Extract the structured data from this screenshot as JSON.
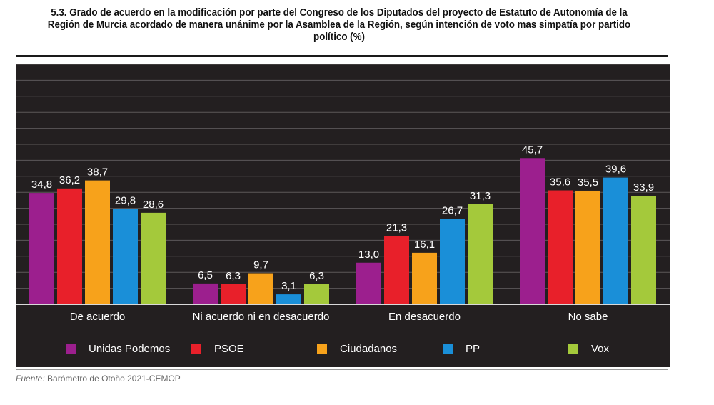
{
  "title": "5.3. Grado de acuerdo en la modificación por parte del Congreso de los Diputados del proyecto de Estatuto de Autonomía de la Región de Murcia acordado de manera unánime por la Asamblea de la Región, según intención de voto mas simpatía por partido político (%)",
  "source": {
    "label": "Fuente:",
    "text": "Barómetro de Otoño 2021-CEMOP"
  },
  "chart_data": {
    "type": "bar",
    "categories": [
      "De acuerdo",
      "Ni acuerdo ni en desacuerdo",
      "En desacuerdo",
      "No sabe"
    ],
    "series": [
      {
        "name": "Unidas Podemos",
        "color": "#9c1f8e",
        "values": [
          34.8,
          6.5,
          13.0,
          45.7
        ],
        "labels": [
          "34,8",
          "6,5",
          "13,0",
          "45,7"
        ]
      },
      {
        "name": "PSOE",
        "color": "#e8202a",
        "values": [
          36.2,
          6.3,
          21.3,
          35.6
        ],
        "labels": [
          "36,2",
          "6,3",
          "21,3",
          "35,6"
        ]
      },
      {
        "name": "Ciudadanos",
        "color": "#f7a21b",
        "values": [
          38.7,
          9.7,
          16.1,
          35.5
        ],
        "labels": [
          "38,7",
          "9,7",
          "16,1",
          "35,5"
        ]
      },
      {
        "name": "PP",
        "color": "#1a8fd8",
        "values": [
          29.8,
          3.1,
          26.7,
          39.6
        ],
        "labels": [
          "29,8",
          "3,1",
          "26,7",
          "39,6"
        ]
      },
      {
        "name": "Vox",
        "color": "#a4c93b",
        "values": [
          28.6,
          6.3,
          31.3,
          33.9
        ],
        "labels": [
          "28,6",
          "6,3",
          "31,3",
          "33,9"
        ]
      }
    ],
    "ylim": [
      0,
      75
    ],
    "grid": true,
    "legend": "bottom",
    "background": "#231f20"
  }
}
